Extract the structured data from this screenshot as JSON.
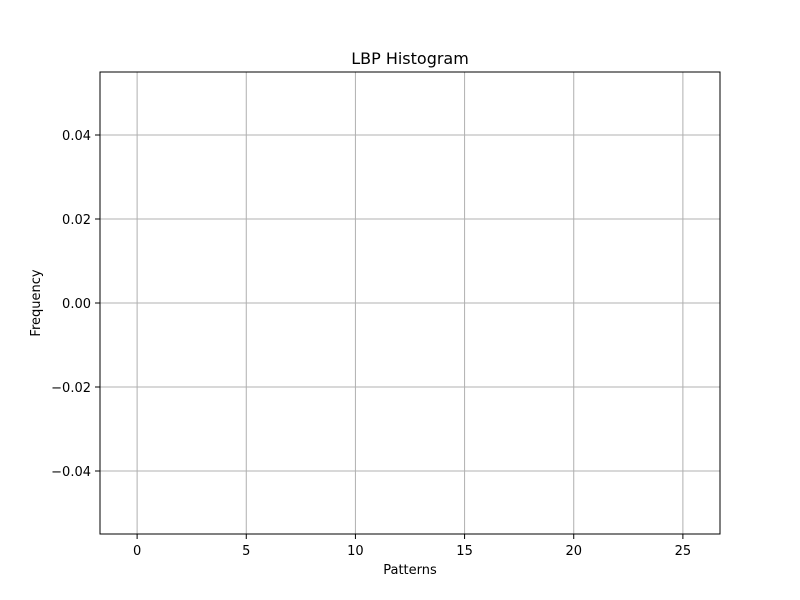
{
  "chart_data": {
    "type": "bar",
    "title": "LBP Histogram",
    "xlabel": "Patterns",
    "ylabel": "Frequency",
    "x": [],
    "values": [],
    "xlim": [
      -1.7,
      26.7
    ],
    "ylim": [
      -0.055,
      0.055
    ],
    "xticks": [
      0,
      5,
      10,
      15,
      20,
      25
    ],
    "xtick_labels": [
      "0",
      "5",
      "10",
      "15",
      "20",
      "25"
    ],
    "yticks": [
      -0.04,
      -0.02,
      0.0,
      0.02,
      0.04
    ],
    "ytick_labels": [
      "−0.04",
      "−0.02",
      "0.00",
      "0.02",
      "0.04"
    ],
    "grid": true,
    "colors": {
      "grid": "#b0b0b0",
      "axis": "#000000",
      "background": "#ffffff"
    }
  }
}
